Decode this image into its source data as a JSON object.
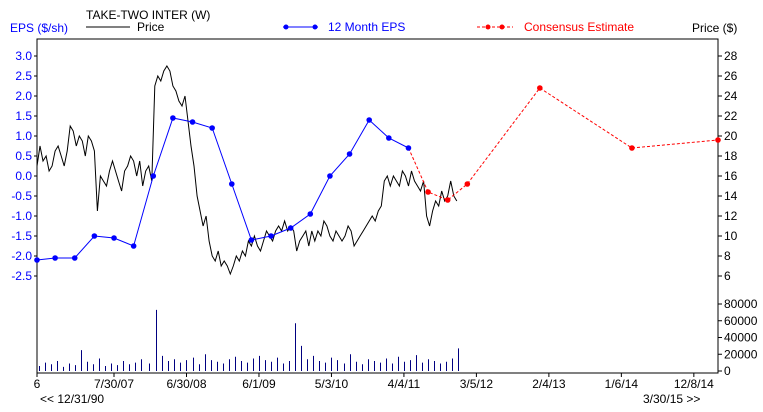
{
  "chart_data": {
    "type": "line",
    "title": "TAKE-TWO INTER (W)",
    "left_axis_label": "EPS ($/sh)",
    "right_axis_label": "Price ($)",
    "eps_ticks": [
      "3.0",
      "2.5",
      "2.0",
      "1.5",
      "1.0",
      "0.5",
      "0.0",
      "-0.5",
      "-1.0",
      "-1.5",
      "-2.0",
      "-2.5"
    ],
    "eps_tick_values": [
      3.0,
      2.5,
      2.0,
      1.5,
      1.0,
      0.5,
      0.0,
      -0.5,
      -1.0,
      -1.5,
      -2.0,
      -2.5
    ],
    "price_ticks": [
      "28",
      "26",
      "24",
      "22",
      "20",
      "18",
      "16",
      "14",
      "12",
      "10",
      "8",
      "6"
    ],
    "price_tick_values": [
      28,
      26,
      24,
      22,
      20,
      18,
      16,
      14,
      12,
      10,
      8,
      6
    ],
    "volume_ticks": [
      "80000",
      "60000",
      "40000",
      "20000",
      "0"
    ],
    "volume_tick_values": [
      80000,
      60000,
      40000,
      20000,
      0
    ],
    "x_ticks": [
      {
        "label": "6",
        "date": "2006-08-07"
      },
      {
        "label": "7/30/07",
        "date": "2007-07-30"
      },
      {
        "label": "6/30/08",
        "date": "2008-06-30"
      },
      {
        "label": "6/1/09",
        "date": "2009-06-01"
      },
      {
        "label": "5/3/10",
        "date": "2010-05-03"
      },
      {
        "label": "4/4/11",
        "date": "2011-04-04"
      },
      {
        "label": "3/5/12",
        "date": "2012-03-05"
      },
      {
        "label": "2/4/13",
        "date": "2013-02-04"
      },
      {
        "label": "1/6/14",
        "date": "2014-01-06"
      },
      {
        "label": "12/8/14",
        "date": "2014-12-08"
      }
    ],
    "x_range": [
      "2006-08-07",
      "2015-03-30"
    ],
    "nav_left": "<< 12/31/90",
    "nav_right": "3/30/15 >>",
    "legend": {
      "price": "Price",
      "eps": "12 Month EPS",
      "consensus": "Consensus Estimate"
    },
    "series": [
      {
        "name": "Price",
        "color": "#000000",
        "axis": "price",
        "points": [
          [
            "2006-08-07",
            17.0
          ],
          [
            "2006-08-21",
            19.0
          ],
          [
            "2006-09-04",
            17.5
          ],
          [
            "2006-09-18",
            18.0
          ],
          [
            "2006-10-02",
            16.5
          ],
          [
            "2006-10-16",
            17.0
          ],
          [
            "2006-10-30",
            18.5
          ],
          [
            "2006-11-13",
            19.0
          ],
          [
            "2006-11-27",
            18.0
          ],
          [
            "2006-12-11",
            17.0
          ],
          [
            "2006-12-25",
            18.5
          ],
          [
            "2007-01-08",
            21.0
          ],
          [
            "2007-01-22",
            20.5
          ],
          [
            "2007-02-05",
            19.0
          ],
          [
            "2007-02-19",
            20.0
          ],
          [
            "2007-03-05",
            19.5
          ],
          [
            "2007-03-19",
            18.0
          ],
          [
            "2007-04-02",
            20.0
          ],
          [
            "2007-04-16",
            19.5
          ],
          [
            "2007-04-30",
            18.5
          ],
          [
            "2007-05-14",
            12.5
          ],
          [
            "2007-05-28",
            16.0
          ],
          [
            "2007-06-11",
            15.5
          ],
          [
            "2007-06-25",
            15.0
          ],
          [
            "2007-07-09",
            16.5
          ],
          [
            "2007-07-23",
            17.5
          ],
          [
            "2007-08-06",
            16.5
          ],
          [
            "2007-08-20",
            15.5
          ],
          [
            "2007-09-03",
            14.5
          ],
          [
            "2007-09-17",
            16.5
          ],
          [
            "2007-10-01",
            17.0
          ],
          [
            "2007-10-15",
            18.0
          ],
          [
            "2007-10-29",
            17.5
          ],
          [
            "2007-11-12",
            16.0
          ],
          [
            "2007-11-26",
            17.5
          ],
          [
            "2007-12-10",
            15.0
          ],
          [
            "2007-12-24",
            16.5
          ],
          [
            "2008-01-07",
            17.0
          ],
          [
            "2008-01-21",
            15.5
          ],
          [
            "2008-02-04",
            25.0
          ],
          [
            "2008-02-18",
            26.0
          ],
          [
            "2008-03-03",
            25.5
          ],
          [
            "2008-03-17",
            26.5
          ],
          [
            "2008-03-31",
            27.0
          ],
          [
            "2008-04-14",
            26.5
          ],
          [
            "2008-04-28",
            25.0
          ],
          [
            "2008-05-12",
            24.5
          ],
          [
            "2008-05-26",
            23.5
          ],
          [
            "2008-06-09",
            23.0
          ],
          [
            "2008-06-23",
            24.0
          ],
          [
            "2008-07-07",
            21.5
          ],
          [
            "2008-07-21",
            19.0
          ],
          [
            "2008-08-04",
            17.0
          ],
          [
            "2008-08-18",
            14.0
          ],
          [
            "2008-09-01",
            12.5
          ],
          [
            "2008-09-15",
            11.0
          ],
          [
            "2008-09-29",
            12.0
          ],
          [
            "2008-10-13",
            9.5
          ],
          [
            "2008-10-27",
            8.0
          ],
          [
            "2008-11-10",
            7.5
          ],
          [
            "2008-11-24",
            8.5
          ],
          [
            "2008-12-08",
            7.0
          ],
          [
            "2008-12-22",
            7.5
          ],
          [
            "2009-01-05",
            7.0
          ],
          [
            "2009-01-19",
            6.2
          ],
          [
            "2009-02-02",
            7.0
          ],
          [
            "2009-02-16",
            8.0
          ],
          [
            "2009-03-02",
            7.5
          ],
          [
            "2009-03-16",
            8.5
          ],
          [
            "2009-03-30",
            8.0
          ],
          [
            "2009-04-13",
            9.5
          ],
          [
            "2009-04-27",
            9.0
          ],
          [
            "2009-05-11",
            10.0
          ],
          [
            "2009-05-25",
            9.0
          ],
          [
            "2009-06-08",
            8.5
          ],
          [
            "2009-06-22",
            9.5
          ],
          [
            "2009-07-06",
            10.5
          ],
          [
            "2009-07-20",
            10.0
          ],
          [
            "2009-08-03",
            9.5
          ],
          [
            "2009-08-17",
            10.5
          ],
          [
            "2009-08-31",
            11.0
          ],
          [
            "2009-09-14",
            10.5
          ],
          [
            "2009-09-28",
            11.5
          ],
          [
            "2009-10-12",
            10.5
          ],
          [
            "2009-10-26",
            11.0
          ],
          [
            "2009-11-09",
            10.5
          ],
          [
            "2009-11-23",
            8.5
          ],
          [
            "2009-12-07",
            9.5
          ],
          [
            "2009-12-21",
            10.0
          ],
          [
            "2010-01-04",
            10.5
          ],
          [
            "2010-01-18",
            9.0
          ],
          [
            "2010-02-01",
            10.5
          ],
          [
            "2010-02-15",
            9.5
          ],
          [
            "2010-03-01",
            10.5
          ],
          [
            "2010-03-15",
            10.0
          ],
          [
            "2010-03-29",
            11.5
          ],
          [
            "2010-04-12",
            11.0
          ],
          [
            "2010-04-26",
            10.0
          ],
          [
            "2010-05-10",
            9.5
          ],
          [
            "2010-05-24",
            10.5
          ],
          [
            "2010-06-07",
            10.0
          ],
          [
            "2010-06-21",
            9.5
          ],
          [
            "2010-07-05",
            10.0
          ],
          [
            "2010-07-19",
            11.0
          ],
          [
            "2010-08-02",
            10.5
          ],
          [
            "2010-08-16",
            9.0
          ],
          [
            "2010-08-30",
            9.5
          ],
          [
            "2010-09-13",
            10.0
          ],
          [
            "2010-09-27",
            10.5
          ],
          [
            "2010-10-11",
            11.0
          ],
          [
            "2010-10-25",
            11.5
          ],
          [
            "2010-11-08",
            12.0
          ],
          [
            "2010-11-22",
            11.5
          ],
          [
            "2010-12-06",
            12.5
          ],
          [
            "2010-12-20",
            13.0
          ],
          [
            "2011-01-03",
            15.5
          ],
          [
            "2011-01-17",
            16.0
          ],
          [
            "2011-01-31",
            15.0
          ],
          [
            "2011-02-14",
            16.0
          ],
          [
            "2011-02-28",
            15.5
          ],
          [
            "2011-03-14",
            15.0
          ],
          [
            "2011-03-28",
            16.5
          ],
          [
            "2011-04-11",
            16.0
          ],
          [
            "2011-04-25",
            15.0
          ],
          [
            "2011-05-09",
            16.5
          ],
          [
            "2011-05-23",
            15.5
          ],
          [
            "2011-06-06",
            15.0
          ],
          [
            "2011-06-20",
            14.5
          ],
          [
            "2011-07-04",
            15.5
          ],
          [
            "2011-07-18",
            12.0
          ],
          [
            "2011-08-01",
            11.0
          ],
          [
            "2011-08-15",
            12.5
          ],
          [
            "2011-08-29",
            13.5
          ],
          [
            "2011-09-12",
            13.0
          ],
          [
            "2011-09-26",
            14.5
          ],
          [
            "2011-10-10",
            13.5
          ],
          [
            "2011-10-24",
            14.0
          ],
          [
            "2011-11-07",
            15.5
          ],
          [
            "2011-11-21",
            14.0
          ],
          [
            "2011-12-05",
            13.5
          ]
        ]
      },
      {
        "name": "12 Month EPS",
        "color": "#0000ff",
        "axis": "eps",
        "points": [
          [
            "2006-08-07",
            -2.1
          ],
          [
            "2006-10-30",
            -2.05
          ],
          [
            "2007-01-29",
            -2.05
          ],
          [
            "2007-04-30",
            -1.5
          ],
          [
            "2007-07-30",
            -1.55
          ],
          [
            "2007-10-29",
            -1.75
          ],
          [
            "2008-01-28",
            0.0
          ],
          [
            "2008-04-28",
            1.45
          ],
          [
            "2008-07-28",
            1.35
          ],
          [
            "2008-10-27",
            1.2
          ],
          [
            "2009-01-26",
            -0.2
          ],
          [
            "2009-04-27",
            -1.6
          ],
          [
            "2009-07-27",
            -1.5
          ],
          [
            "2009-10-26",
            -1.3
          ],
          [
            "2010-01-25",
            -0.95
          ],
          [
            "2010-04-26",
            0.0
          ],
          [
            "2010-07-26",
            0.55
          ],
          [
            "2010-10-25",
            1.4
          ],
          [
            "2011-01-24",
            0.95
          ],
          [
            "2011-04-25",
            0.7
          ]
        ]
      },
      {
        "name": "Consensus Estimate",
        "color": "#ff0000",
        "axis": "eps",
        "points": [
          [
            "2011-04-25",
            0.7
          ],
          [
            "2011-07-25",
            -0.4
          ],
          [
            "2011-10-24",
            -0.6
          ],
          [
            "2012-01-23",
            -0.2
          ],
          [
            "2012-12-24",
            2.2
          ],
          [
            "2014-02-24",
            0.7
          ],
          [
            "2015-03-30",
            0.9
          ]
        ]
      }
    ],
    "volume": {
      "color": "#000080",
      "points": [
        [
          "2006-08-14",
          6000
        ],
        [
          "2006-09-11",
          10000
        ],
        [
          "2006-10-09",
          8000
        ],
        [
          "2006-11-06",
          12000
        ],
        [
          "2006-12-04",
          5000
        ],
        [
          "2007-01-01",
          9000
        ],
        [
          "2007-01-29",
          7000
        ],
        [
          "2007-02-26",
          25000
        ],
        [
          "2007-03-26",
          11000
        ],
        [
          "2007-04-23",
          8000
        ],
        [
          "2007-05-21",
          15000
        ],
        [
          "2007-06-18",
          6000
        ],
        [
          "2007-07-16",
          9000
        ],
        [
          "2007-08-13",
          7000
        ],
        [
          "2007-09-10",
          12000
        ],
        [
          "2007-10-08",
          8000
        ],
        [
          "2007-11-05",
          10000
        ],
        [
          "2007-12-03",
          14000
        ],
        [
          "2008-01-07",
          9000
        ],
        [
          "2008-02-11",
          73000
        ],
        [
          "2008-03-10",
          18000
        ],
        [
          "2008-04-07",
          12000
        ],
        [
          "2008-05-05",
          14000
        ],
        [
          "2008-06-02",
          10000
        ],
        [
          "2008-06-30",
          13000
        ],
        [
          "2008-07-28",
          16000
        ],
        [
          "2008-08-25",
          8000
        ],
        [
          "2008-09-22",
          20000
        ],
        [
          "2008-10-20",
          13000
        ],
        [
          "2008-11-17",
          11000
        ],
        [
          "2008-12-15",
          9000
        ],
        [
          "2009-01-12",
          14000
        ],
        [
          "2009-02-09",
          17000
        ],
        [
          "2009-03-09",
          12000
        ],
        [
          "2009-04-06",
          10000
        ],
        [
          "2009-05-04",
          15000
        ],
        [
          "2009-06-01",
          18000
        ],
        [
          "2009-06-29",
          13000
        ],
        [
          "2009-07-27",
          11000
        ],
        [
          "2009-08-24",
          16000
        ],
        [
          "2009-09-21",
          9000
        ],
        [
          "2009-10-19",
          12000
        ],
        [
          "2009-11-16",
          57000
        ],
        [
          "2009-12-14",
          30000
        ],
        [
          "2010-01-11",
          14000
        ],
        [
          "2010-02-08",
          18000
        ],
        [
          "2010-03-08",
          12000
        ],
        [
          "2010-04-05",
          10000
        ],
        [
          "2010-05-03",
          16000
        ],
        [
          "2010-05-31",
          13000
        ],
        [
          "2010-06-28",
          9000
        ],
        [
          "2010-07-26",
          20000
        ],
        [
          "2010-08-23",
          11000
        ],
        [
          "2010-09-20",
          8000
        ],
        [
          "2010-10-18",
          14000
        ],
        [
          "2010-11-15",
          12000
        ],
        [
          "2010-12-13",
          10000
        ],
        [
          "2011-01-10",
          15000
        ],
        [
          "2011-02-07",
          9000
        ],
        [
          "2011-03-07",
          17000
        ],
        [
          "2011-04-04",
          11000
        ],
        [
          "2011-05-02",
          13000
        ],
        [
          "2011-05-30",
          19000
        ],
        [
          "2011-06-27",
          10000
        ],
        [
          "2011-07-25",
          14000
        ],
        [
          "2011-08-22",
          12000
        ],
        [
          "2011-09-19",
          9000
        ],
        [
          "2011-10-17",
          11000
        ],
        [
          "2011-11-14",
          15000
        ],
        [
          "2011-12-12",
          27000
        ]
      ]
    },
    "grid": false,
    "legend_placement": "top"
  }
}
